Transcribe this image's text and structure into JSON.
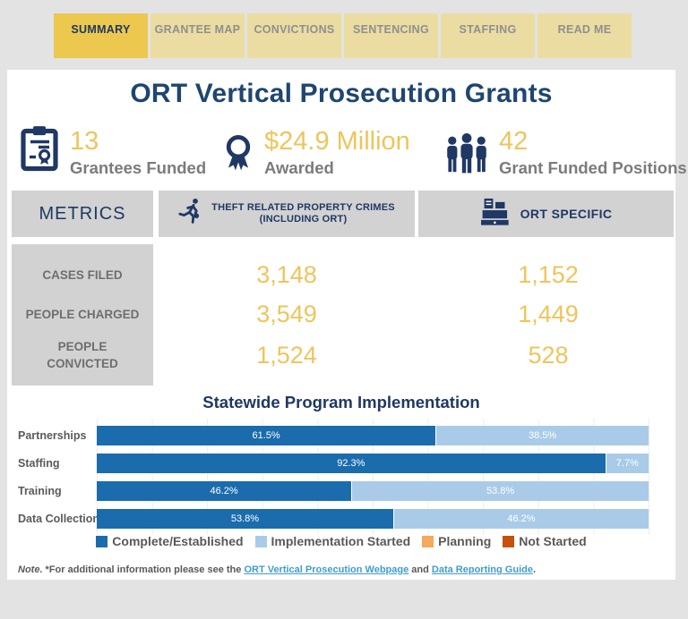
{
  "tabs": [
    {
      "label": "SUMMARY",
      "active": true
    },
    {
      "label": "GRANTEE MAP",
      "active": false
    },
    {
      "label": "CONVICTIONS",
      "active": false
    },
    {
      "label": "SENTENCING",
      "active": false
    },
    {
      "label": "STAFFING",
      "active": false
    },
    {
      "label": "READ ME",
      "active": false
    }
  ],
  "title": "ORT Vertical Prosecution Grants",
  "stats": [
    {
      "icon": "clipboard-certificate-icon",
      "value": "13",
      "label": "Grantees Funded"
    },
    {
      "icon": "award-ribbon-icon",
      "value": "$24.9 Million",
      "label": "Awarded"
    },
    {
      "icon": "people-group-icon",
      "value": "42",
      "label": "Grant Funded Positions"
    }
  ],
  "metrics_table": {
    "corner_label": "METRICS",
    "col_theft": {
      "icon": "running-thief-icon",
      "line1": "THEFT RELATED PROPERTY CRIMES",
      "line2": "(INCLUDING ORT)"
    },
    "col_ort": {
      "icon": "cash-register-icon",
      "label": "ORT SPECIFIC"
    },
    "rows": [
      {
        "label": "CASES FILED",
        "theft_related": "3,148",
        "ort_specific": "1,152"
      },
      {
        "label": "PEOPLE CHARGED",
        "theft_related": "3,549",
        "ort_specific": "1,449"
      },
      {
        "label": "PEOPLE CONVICTED",
        "theft_related": "1,524",
        "ort_specific": "528"
      }
    ]
  },
  "chart_data": {
    "type": "bar",
    "stacked": true,
    "orientation": "horizontal",
    "title": "Statewide Program Implementation",
    "categories": [
      "Partnerships",
      "Staffing",
      "Training",
      "Data Collection"
    ],
    "series": [
      {
        "name": "Complete/Established",
        "color": "#1B6CAD",
        "values": [
          61.5,
          92.3,
          46.2,
          53.8
        ],
        "labels": [
          "61.5%",
          "92.3%",
          "46.2%",
          "53.8%"
        ]
      },
      {
        "name": "Implementation Started",
        "color": "#A9CBE8",
        "values": [
          38.5,
          7.7,
          53.8,
          46.2
        ],
        "labels": [
          "38.5%",
          "7.7%",
          "53.8%",
          "46.2%"
        ]
      },
      {
        "name": "Planning",
        "color": "#F5A95D",
        "values": [
          0,
          0,
          0,
          0
        ],
        "labels": [
          "",
          "",
          "",
          ""
        ]
      },
      {
        "name": "Not Started",
        "color": "#C7500B",
        "values": [
          0,
          0,
          0,
          0
        ],
        "labels": [
          "",
          "",
          "",
          ""
        ]
      }
    ],
    "xlim": [
      0,
      100
    ],
    "grid": true,
    "legend_position": "bottom"
  },
  "legend": [
    {
      "label": "Complete/Established",
      "color": "#1B6CAD"
    },
    {
      "label": "Implementation Started",
      "color": "#A9CBE8"
    },
    {
      "label": "Planning",
      "color": "#F5A95D"
    },
    {
      "label": "Not Started",
      "color": "#C7500B"
    }
  ],
  "note": {
    "prefix_italic": "Note.",
    "text_before": " *For additional information please see the ",
    "link1": "ORT Vertical Prosecution Webpage",
    "text_middle": " and ",
    "link2": "Data Reporting Guide",
    "text_after": "."
  },
  "colors": {
    "page_background": "#E3E3E3",
    "panel_background": "#FFFFFF",
    "navy": "#1F3864",
    "gold": "#EDC55C",
    "active_tab": "#ECC84E",
    "inactive_tab": "#EBDCA2",
    "gray_box": "#D2D2D2",
    "link_blue": "#3E9CD1"
  }
}
